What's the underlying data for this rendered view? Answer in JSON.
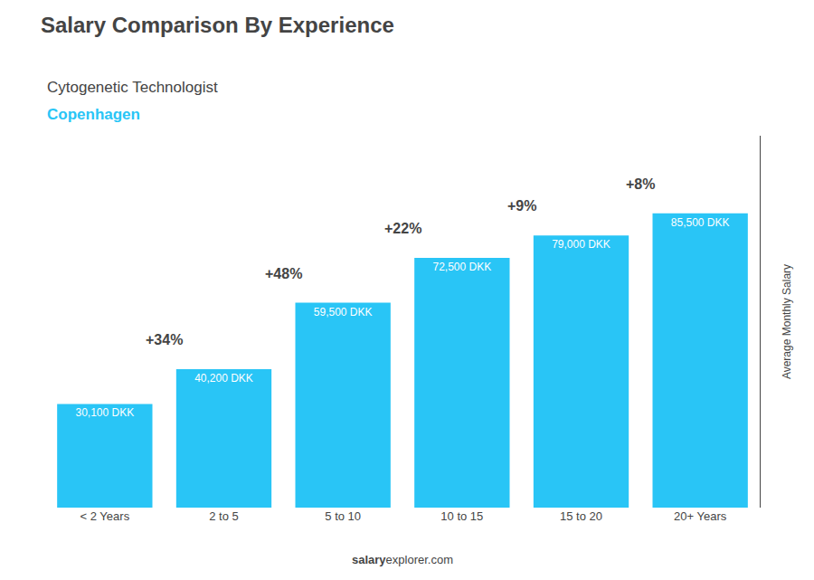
{
  "chart_data": {
    "type": "bar",
    "title": "Salary Comparison By Experience",
    "subtitle": "Cytogenetic Technologist",
    "city": "Copenhagen",
    "footer": [
      "salary",
      "explorer.com"
    ],
    "y_label": "Average Monthly Salary",
    "categories": [
      "< 2 Years",
      "2 to 5",
      "5 to 10",
      "10 to 15",
      "15 to 20",
      "20+ Years"
    ],
    "values": [
      30100,
      40200,
      59500,
      72500,
      79000,
      85500
    ],
    "value_labels": [
      "30,100 DKK",
      "40,200 DKK",
      "59,500 DKK",
      "72,500 DKK",
      "79,000 DKK",
      "85,500 DKK"
    ],
    "data_labels": true,
    "annotations": [
      "+34%",
      "+48%",
      "+22%",
      "+9%",
      "+8%"
    ],
    "color": "#29c5f6",
    "ylim": [
      0,
      108000
    ],
    "tick_labels": "x",
    "grid": false
  }
}
